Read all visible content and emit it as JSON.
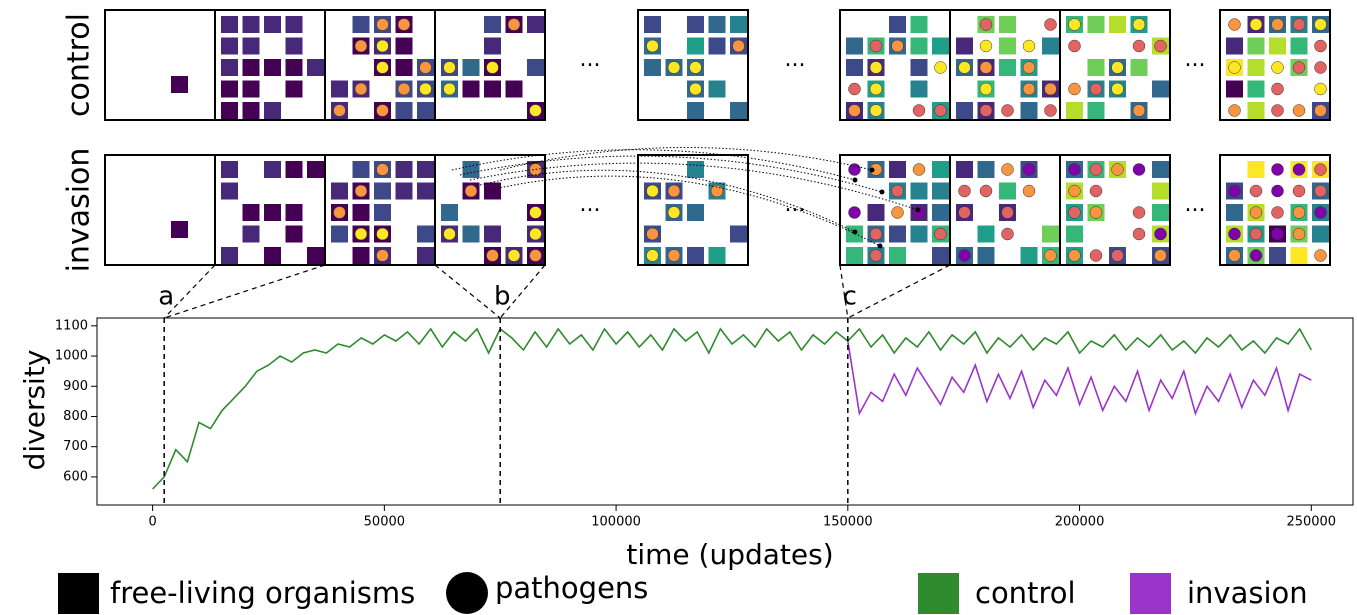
{
  "chart_data": {
    "type": "line",
    "xlabel": "time (updates)",
    "ylabel": "diversity",
    "xlim": [
      -12000,
      259000
    ],
    "ylim": [
      507,
      1126
    ],
    "xticks": [
      0,
      50000,
      100000,
      150000,
      200000,
      250000
    ],
    "yticks": [
      600,
      700,
      800,
      900,
      1000,
      1100
    ],
    "grid": false,
    "x": [
      0,
      2500,
      5000,
      7500,
      10000,
      12500,
      15000,
      17500,
      20000,
      22500,
      25000,
      27500,
      30000,
      32500,
      35000,
      37500,
      40000,
      42500,
      45000,
      47500,
      50000,
      52500,
      55000,
      57500,
      60000,
      62500,
      65000,
      67500,
      70000,
      72500,
      75000,
      77500,
      80000,
      82500,
      85000,
      87500,
      90000,
      92500,
      95000,
      97500,
      100000,
      102500,
      105000,
      107500,
      110000,
      112500,
      115000,
      117500,
      120000,
      122500,
      125000,
      127500,
      130000,
      132500,
      135000,
      137500,
      140000,
      142500,
      145000,
      147500,
      150000,
      152500,
      155000,
      157500,
      160000,
      162500,
      165000,
      167500,
      170000,
      172500,
      175000,
      177500,
      180000,
      182500,
      185000,
      187500,
      190000,
      192500,
      195000,
      197500,
      200000,
      202500,
      205000,
      207500,
      210000,
      212500,
      215000,
      217500,
      220000,
      222500,
      225000,
      227500,
      230000,
      232500,
      235000,
      237500,
      240000,
      242500,
      245000,
      247500,
      250000
    ],
    "series": [
      {
        "name": "control",
        "color": "#2e8b2e",
        "values": [
          560,
          600,
          690,
          650,
          780,
          760,
          820,
          860,
          900,
          950,
          970,
          1000,
          980,
          1010,
          1020,
          1010,
          1040,
          1030,
          1060,
          1040,
          1070,
          1050,
          1080,
          1040,
          1090,
          1030,
          1080,
          1050,
          1090,
          1010,
          1090,
          1060,
          1020,
          1080,
          1030,
          1090,
          1040,
          1070,
          1020,
          1090,
          1040,
          1080,
          1030,
          1070,
          1020,
          1090,
          1050,
          1080,
          1010,
          1090,
          1040,
          1070,
          1030,
          1090,
          1050,
          1080,
          1020,
          1070,
          1040,
          1080,
          1050,
          1090,
          1030,
          1070,
          1010,
          1060,
          1030,
          1080,
          1020,
          1070,
          1040,
          1080,
          1010,
          1060,
          1030,
          1070,
          1020,
          1060,
          1040,
          1080,
          1010,
          1050,
          1030,
          1070,
          1020,
          1060,
          1030,
          1070,
          1020,
          1050,
          1010,
          1060,
          1030,
          1070,
          1020,
          1050,
          1010,
          1060,
          1040,
          1090,
          1020
        ]
      },
      {
        "name": "invasion",
        "color": "#9b35c9",
        "values": [
          null,
          null,
          null,
          null,
          null,
          null,
          null,
          null,
          null,
          null,
          null,
          null,
          null,
          null,
          null,
          null,
          null,
          null,
          null,
          null,
          null,
          null,
          null,
          null,
          null,
          null,
          null,
          null,
          null,
          null,
          null,
          null,
          null,
          null,
          null,
          null,
          null,
          null,
          null,
          null,
          null,
          null,
          null,
          null,
          null,
          null,
          null,
          null,
          null,
          null,
          null,
          null,
          null,
          null,
          null,
          null,
          null,
          null,
          null,
          null,
          1050,
          810,
          880,
          850,
          940,
          870,
          960,
          900,
          840,
          930,
          880,
          970,
          850,
          940,
          860,
          950,
          830,
          920,
          870,
          960,
          840,
          930,
          820,
          900,
          850,
          950,
          820,
          920,
          860,
          950,
          810,
          900,
          850,
          940,
          830,
          920,
          870,
          960,
          820,
          940,
          920
        ]
      }
    ],
    "annotations": [
      {
        "label": "a",
        "x": 2500
      },
      {
        "label": "b",
        "x": 75000
      },
      {
        "label": "c",
        "x": 150000
      }
    ]
  },
  "panels": {
    "row_labels": [
      "control",
      "invasion"
    ],
    "ellipsis": "..."
  },
  "legend": {
    "shapes": [
      "free-living organisms",
      "pathogens"
    ]
  }
}
